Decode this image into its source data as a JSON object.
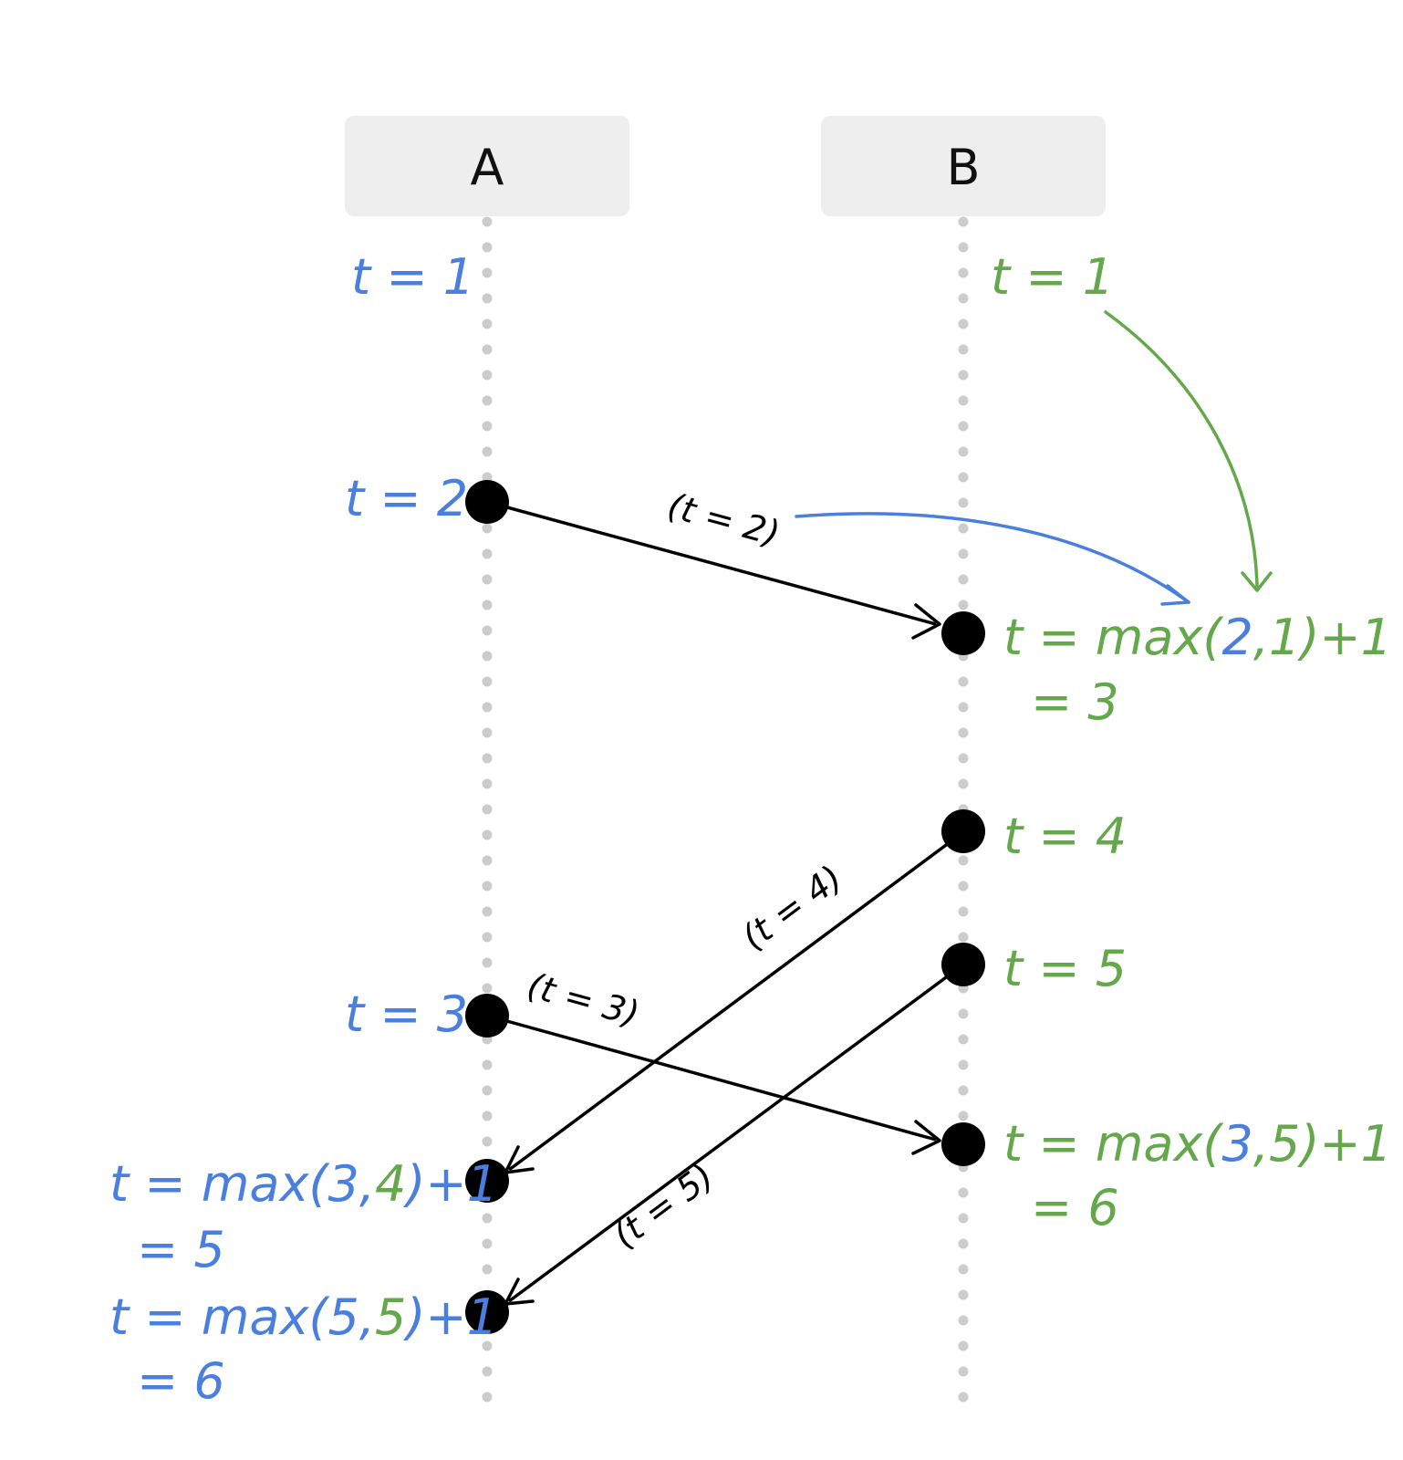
{
  "processes": [
    {
      "name": "A",
      "color": "#4a7fde"
    },
    {
      "name": "B",
      "color": "#64a84b"
    }
  ],
  "labels": {
    "a_t1": "t = 1",
    "a_t2": "t = 2",
    "a_t3": "t = 3",
    "a_recv1": {
      "line1": [
        "t = max(3,",
        "4",
        ")+1"
      ],
      "line2": "= 5"
    },
    "a_recv2": {
      "line1": [
        "t = max(5,",
        "5",
        ")+1"
      ],
      "line2": "= 6"
    },
    "b_t1": "t = 1",
    "b_recv1": {
      "line1": [
        "t = max(",
        "2",
        ",1)+1"
      ],
      "line2": "= 3"
    },
    "b_t4": "t = 4",
    "b_t5": "t = 5",
    "b_recv2": {
      "line1": [
        "t = max(",
        "3",
        ",5)+1"
      ],
      "line2": "= 6"
    }
  },
  "messages": [
    {
      "label": "(t = 2)"
    },
    {
      "label": "(t = 4)"
    },
    {
      "label": "(t = 5)"
    },
    {
      "label": "(t = 3)"
    }
  ]
}
